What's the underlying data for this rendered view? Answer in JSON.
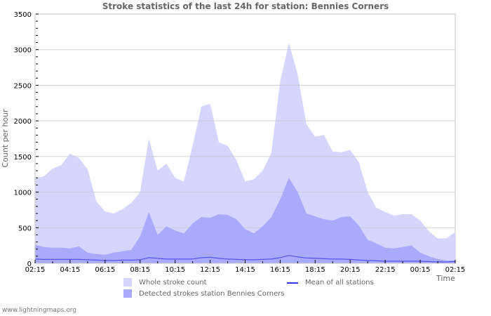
{
  "title": "Stroke statistics of the last 24h for station: Bennies Corners",
  "footer": "www.lightningmaps.org",
  "colors": {
    "whole": "#d5d5fd",
    "detected": "#aaaafd",
    "mean": "#3333ee",
    "grid": "#c8c8c8"
  },
  "legend": {
    "whole": "Whole stroke count",
    "detected": "Detected strokes station Bennies Corners",
    "mean": "Mean of all stations"
  },
  "chart_data": {
    "type": "area",
    "title": "Stroke statistics of the last 24h for station: Bennies Corners",
    "xlabel": "Time",
    "ylabel": "Count per hour",
    "ylim": [
      0,
      3500
    ],
    "yticks": [
      0,
      500,
      1000,
      1500,
      2000,
      2500,
      3000,
      3500
    ],
    "xtick_labels": [
      "02:15",
      "04:15",
      "06:15",
      "08:15",
      "10:15",
      "12:15",
      "14:15",
      "16:15",
      "18:15",
      "20:15",
      "22:15",
      "00:15",
      "02:15"
    ],
    "grid": true,
    "legend_position": "bottom",
    "x": [
      "02:15",
      "02:45",
      "03:15",
      "03:45",
      "04:15",
      "04:45",
      "05:15",
      "05:45",
      "06:15",
      "06:45",
      "07:15",
      "07:45",
      "08:15",
      "08:45",
      "09:15",
      "09:45",
      "10:15",
      "10:45",
      "11:15",
      "11:45",
      "12:15",
      "12:45",
      "13:15",
      "13:45",
      "14:15",
      "14:45",
      "15:15",
      "15:45",
      "16:15",
      "16:45",
      "17:15",
      "17:45",
      "18:15",
      "18:45",
      "19:15",
      "19:45",
      "20:15",
      "20:45",
      "21:15",
      "21:45",
      "22:15",
      "22:45",
      "23:15",
      "23:45",
      "00:15",
      "00:45",
      "01:15",
      "01:45",
      "02:15"
    ],
    "series": [
      {
        "name": "Whole stroke count",
        "values": [
          1200,
          1220,
          1330,
          1380,
          1540,
          1480,
          1320,
          870,
          730,
          700,
          760,
          850,
          1000,
          1750,
          1300,
          1400,
          1200,
          1150,
          1650,
          2200,
          2240,
          1700,
          1650,
          1450,
          1150,
          1180,
          1300,
          1550,
          2550,
          3100,
          2650,
          1950,
          1780,
          1800,
          1570,
          1560,
          1590,
          1420,
          1000,
          780,
          720,
          670,
          690,
          690,
          600,
          450,
          350,
          350,
          440
        ]
      },
      {
        "name": "Detected strokes station Bennies Corners",
        "values": [
          260,
          230,
          220,
          220,
          210,
          240,
          150,
          130,
          120,
          150,
          170,
          190,
          380,
          720,
          400,
          520,
          460,
          420,
          560,
          650,
          640,
          690,
          680,
          620,
          480,
          420,
          520,
          650,
          900,
          1200,
          1000,
          700,
          660,
          620,
          600,
          650,
          660,
          530,
          330,
          280,
          220,
          210,
          230,
          250,
          150,
          100,
          60,
          40,
          40
        ]
      },
      {
        "name": "Mean of all stations",
        "values": [
          60,
          55,
          55,
          55,
          55,
          55,
          50,
          45,
          40,
          40,
          45,
          45,
          50,
          80,
          70,
          60,
          60,
          60,
          60,
          80,
          85,
          70,
          60,
          55,
          50,
          50,
          55,
          60,
          80,
          110,
          90,
          75,
          70,
          65,
          60,
          60,
          55,
          45,
          40,
          35,
          30,
          30,
          30,
          30,
          30,
          25,
          20,
          20,
          25
        ]
      }
    ]
  }
}
